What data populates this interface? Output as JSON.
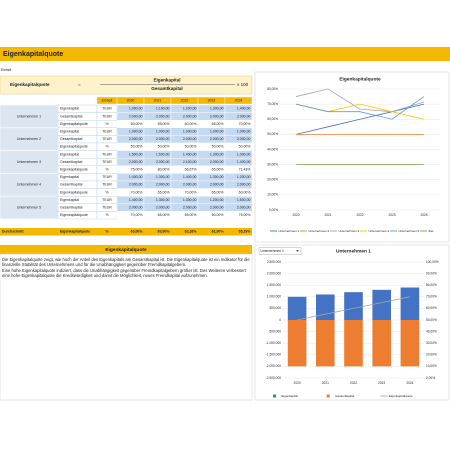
{
  "header": {
    "title": "Eigenkapitalquote",
    "unit_note": "Einheit"
  },
  "formula": {
    "name": "Eigenkapitalquote",
    "equals": "=",
    "numerator": "Eigenkapital",
    "denominator": "Gesamtkapital",
    "factor": "x 100"
  },
  "table": {
    "header": [
      "Einheit",
      "2020",
      "2021",
      "2022",
      "2023",
      "2024"
    ],
    "groups": [
      {
        "name": "Unternehmen 1",
        "rows": [
          [
            "Eigenkapital",
            "TEUR",
            "1.000,00",
            "1.100,00",
            "1.200,00",
            "1.300,00",
            "1.400,00"
          ],
          [
            "Gesamtkapital",
            "TEUR",
            "2.000,00",
            "2.000,00",
            "2.000,00",
            "2.000,00",
            "2.000,00"
          ],
          [
            "Eigenkapitalquote",
            "%",
            "50,00%",
            "55,00%",
            "60,00%",
            "65,00%",
            "70,00%"
          ]
        ]
      },
      {
        "name": "Unternehmen 2",
        "rows": [
          [
            "Eigenkapital",
            "TEUR",
            "1.000,00",
            "1.000,00",
            "1.000,00",
            "1.000,00",
            "1.000,00"
          ],
          [
            "Gesamtkapital",
            "TEUR",
            "2.000,00",
            "2.000,00",
            "2.000,00",
            "2.000,00",
            "2.000,00"
          ],
          [
            "Eigenkapitalquote",
            "%",
            "50,00%",
            "50,00%",
            "50,00%",
            "50,00%",
            "50,00%"
          ]
        ]
      },
      {
        "name": "Unternehmen 3",
        "rows": [
          [
            "Eigenkapital",
            "TEUR",
            "1.500,00",
            "1.600,00",
            "1.400,00",
            "1.300,00",
            "1.000,00"
          ],
          [
            "Gesamtkapital",
            "TEUR",
            "2.000,00",
            "2.000,00",
            "2.100,00",
            "2.000,00",
            "1.400,00"
          ],
          [
            "Eigenkapitalquote",
            "%",
            "75,00%",
            "80,00%",
            "66,67%",
            "65,00%",
            "71,43%"
          ]
        ]
      },
      {
        "name": "Unternehmen 4",
        "rows": [
          [
            "Eigenkapital",
            "TEUR",
            "1.400,00",
            "1.300,00",
            "1.400,00",
            "1.300,00",
            "1.200,00"
          ],
          [
            "Gesamtkapital",
            "TEUR",
            "2.000,00",
            "2.000,00",
            "2.000,00",
            "2.000,00",
            "2.000,00"
          ],
          [
            "Eigenkapitalquote",
            "%",
            "70,00%",
            "65,00%",
            "70,00%",
            "65,00%",
            "60,00%"
          ]
        ]
      },
      {
        "name": "Unternehmen 5",
        "rows": [
          [
            "Eigenkapital",
            "TEUR",
            "1.400,00",
            "1.300,00",
            "1.300,00",
            "1.200,00",
            "1.500,00"
          ],
          [
            "Gesamtkapital",
            "TEUR",
            "2.000,00",
            "2.000,00",
            "2.000,00",
            "2.000,00",
            "2.000,00"
          ],
          [
            "Eigenkapitalquote",
            "%",
            "70,00%",
            "65,00%",
            "65,00%",
            "60,00%",
            "75,00%"
          ]
        ]
      }
    ],
    "average": [
      "Durchschnitt",
      "Eigenkapitalquote",
      "%",
      "63,00%",
      "63,00%",
      "62,33%",
      "61,00%",
      "65,29%"
    ]
  },
  "text_section": {
    "title": "Eigenkapitalquote",
    "paragraphs": [
      "Die Eigenkapitalquote zeigt, wie hoch der Anteil des Eigenkapitals am Gesamtkapital ist. Die Eigenkapitalquote ist ein Indikator für die finanzielle Stabilität des Unternehmens und für die Unabhängigkeit gegenüber Fremdkapitalgebern.",
      "Eine hohe Eigenkapitalquote indiziert, dass die Unabhängigkeit gegenüber Fremdkapitalgebern größer ist. Des Weiteren verbessert eine hohe Eigenkapitalquote die Kreditwürdigkeit und damit die Möglichkeit, neues Fremdkapital aufzunehmen."
    ]
  },
  "selector": "Unternehmen 1",
  "chart_data": [
    {
      "type": "line",
      "title": "Eigenkapitalquote",
      "categories": [
        "2020",
        "2021",
        "2022",
        "2023",
        "2024"
      ],
      "series": [
        {
          "name": "Unternehmen 1",
          "color": "#4472c4",
          "values": [
            50,
            55,
            60,
            65,
            70
          ]
        },
        {
          "name": "Unternehmen 2",
          "color": "#ed7d31",
          "values": [
            50,
            50,
            50,
            50,
            50
          ]
        },
        {
          "name": "Unternehmen 3",
          "color": "#a5a5a5",
          "values": [
            75,
            80,
            66.67,
            65,
            71.43
          ]
        },
        {
          "name": "Unternehmen 4",
          "color": "#ffc000",
          "values": [
            70,
            65,
            70,
            65,
            60
          ]
        },
        {
          "name": "Unternehmen 5",
          "color": "#5b9bd5",
          "values": [
            70,
            65,
            65,
            60,
            75
          ]
        },
        {
          "name": "Ziel",
          "color": "#70ad47",
          "values": [
            30,
            30,
            30,
            30,
            30
          ]
        }
      ],
      "ylim": [
        0,
        80
      ],
      "yticks": [
        {
          "value": 0,
          "label": "0,00%"
        },
        {
          "value": 10,
          "label": "10,00%"
        },
        {
          "value": 20,
          "label": "20,00%"
        },
        {
          "value": 30,
          "label": "30,00%"
        },
        {
          "value": 40,
          "label": "40,00%"
        },
        {
          "value": 50,
          "label": "50,00%"
        },
        {
          "value": 60,
          "label": "60,00%"
        },
        {
          "value": 70,
          "label": "70,00%"
        },
        {
          "value": 80,
          "label": "80,00%"
        }
      ],
      "grid": true
    },
    {
      "type": "bar_line",
      "title": "Unternehmen 1",
      "categories": [
        "2020",
        "2021",
        "2022",
        "2023",
        "2024"
      ],
      "series": [
        {
          "name": "Eigenkapital",
          "color": "#4472c4",
          "values": [
            1000000,
            1100000,
            1200000,
            1300000,
            1400000
          ]
        },
        {
          "name": "Gesamtkapital",
          "color": "#ed7d31",
          "values": [
            -2000000,
            -2000000,
            -2000000,
            -2000000,
            -2000000
          ]
        },
        {
          "name": "Eigenkapitalquote",
          "color": "#a5a5a5",
          "values": [
            50,
            55,
            60,
            65,
            70
          ],
          "axis": "y2"
        }
      ],
      "ylim": [
        -2500000,
        2500000
      ],
      "yticks": [
        {
          "value": -2500000,
          "label": "-2.500.000"
        },
        {
          "value": -2000000,
          "label": "-2.000.000"
        },
        {
          "value": -1500000,
          "label": "-1.500.000"
        },
        {
          "value": -1000000,
          "label": "-1.000.000"
        },
        {
          "value": -500000,
          "label": "-500.000"
        },
        0,
        {
          "value": 500000,
          "label": "500.000"
        },
        {
          "value": 1000000,
          "label": "1.000.000"
        },
        {
          "value": 1500000,
          "label": "1.500.000"
        },
        {
          "value": 2000000,
          "label": "2.000.000"
        },
        {
          "value": 2500000,
          "label": "2.500.000"
        }
      ],
      "y2lim": [
        0,
        100
      ],
      "y2ticks": [
        {
          "value": 0,
          "label": "0,00%"
        },
        {
          "value": 10,
          "label": "10,00%"
        },
        {
          "value": 20,
          "label": "20,00%"
        },
        {
          "value": 30,
          "label": "30,00%"
        },
        {
          "value": 40,
          "label": "40,00%"
        },
        {
          "value": 50,
          "label": "50,00%"
        },
        {
          "value": 60,
          "label": "60,00%"
        },
        {
          "value": 70,
          "label": "70,00%"
        },
        {
          "value": 80,
          "label": "80,00%"
        },
        {
          "value": 90,
          "label": "90,00%"
        },
        {
          "value": 100,
          "label": "100,00%"
        }
      ],
      "grid": true
    }
  ]
}
